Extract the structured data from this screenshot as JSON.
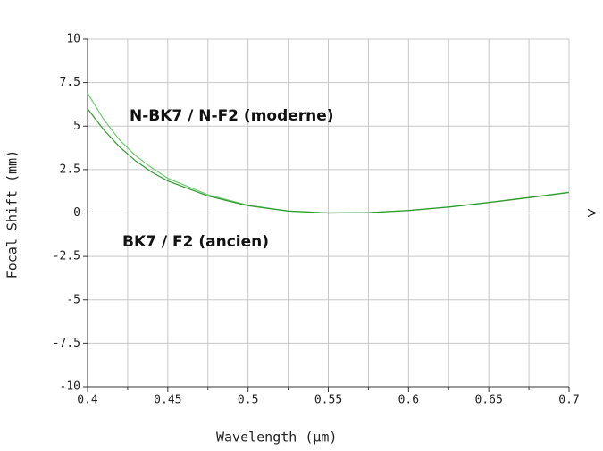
{
  "chart_data": {
    "type": "line",
    "x_label": "Wavelength (µm)",
    "y_label": "Focal Shift (mm)",
    "x": [
      0.4,
      0.41,
      0.42,
      0.43,
      0.44,
      0.45,
      0.475,
      0.5,
      0.525,
      0.55,
      0.575,
      0.6,
      0.625,
      0.65,
      0.675,
      0.7
    ],
    "series": [
      {
        "name": "N-BK7 / N-F2 (moderne)",
        "color": "#6cc86c",
        "values": [
          6.9,
          5.4,
          4.2,
          3.3,
          2.6,
          2.0,
          1.05,
          0.45,
          0.12,
          0.0,
          0.02,
          0.15,
          0.35,
          0.62,
          0.9,
          1.2
        ]
      },
      {
        "name": "BK7 / F2 (ancien)",
        "color": "#2e9a2e",
        "values": [
          6.0,
          4.8,
          3.8,
          3.0,
          2.35,
          1.85,
          0.98,
          0.42,
          0.11,
          0.0,
          0.02,
          0.14,
          0.34,
          0.6,
          0.88,
          1.18
        ]
      }
    ],
    "xlim": [
      0.4,
      0.7
    ],
    "ylim": [
      -10,
      10
    ],
    "xticks": [
      0.4,
      0.45,
      0.5,
      0.55,
      0.6,
      0.65,
      0.7
    ],
    "xminor": [
      0.425,
      0.475,
      0.525,
      0.575,
      0.625,
      0.675
    ],
    "yticks": [
      -10,
      -7.5,
      -5,
      -2.5,
      0,
      2.5,
      5,
      7.5,
      10
    ],
    "grid": true
  }
}
